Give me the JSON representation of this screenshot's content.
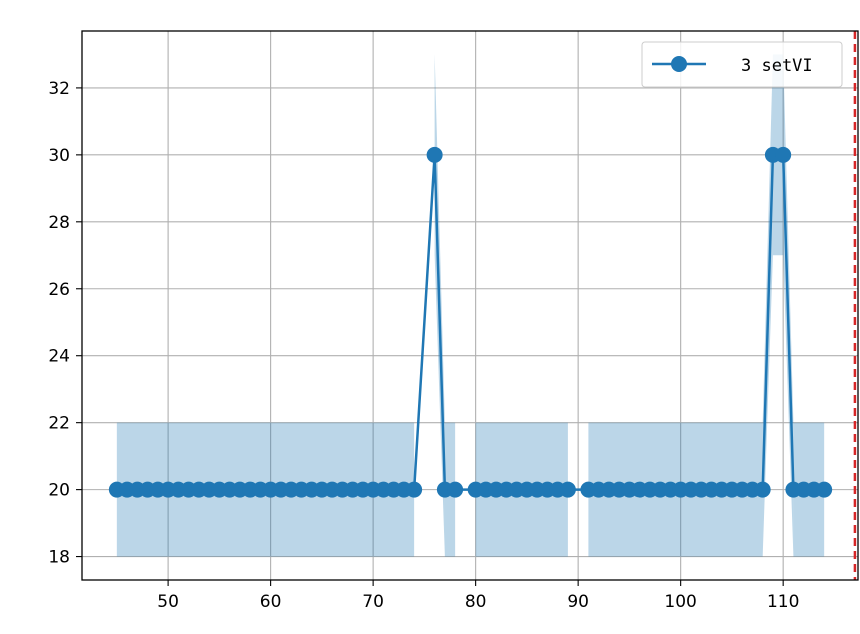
{
  "chart_data": {
    "type": "line",
    "title": "",
    "xlabel": "",
    "ylabel": "",
    "xlim": [
      41.6,
      117.3
    ],
    "ylim": [
      17.3,
      33.7
    ],
    "xticks": [
      50,
      60,
      70,
      80,
      90,
      100,
      110
    ],
    "yticks": [
      18,
      20,
      22,
      24,
      26,
      28,
      30,
      32
    ],
    "grid": true,
    "legend_position": "top-right",
    "vline": {
      "x": 117,
      "color": "#d62728",
      "style": "dashed"
    },
    "series": [
      {
        "name": "3 setVI",
        "color": "#1f77b4",
        "x": [
          45,
          46,
          47,
          48,
          49,
          50,
          51,
          52,
          53,
          54,
          55,
          56,
          57,
          58,
          59,
          60,
          61,
          62,
          63,
          64,
          65,
          66,
          67,
          68,
          69,
          70,
          71,
          72,
          73,
          74,
          76,
          77,
          78,
          80,
          81,
          82,
          83,
          84,
          85,
          86,
          87,
          88,
          89,
          91,
          92,
          93,
          94,
          95,
          96,
          97,
          98,
          99,
          100,
          101,
          102,
          103,
          104,
          105,
          106,
          107,
          108,
          109,
          110,
          111,
          112,
          113,
          114
        ],
        "y": [
          20,
          20,
          20,
          20,
          20,
          20,
          20,
          20,
          20,
          20,
          20,
          20,
          20,
          20,
          20,
          20,
          20,
          20,
          20,
          20,
          20,
          20,
          20,
          20,
          20,
          20,
          20,
          20,
          20,
          20,
          30,
          20,
          20,
          20,
          20,
          20,
          20,
          20,
          20,
          20,
          20,
          20,
          20,
          20,
          20,
          20,
          20,
          20,
          20,
          20,
          20,
          20,
          20,
          20,
          20,
          20,
          20,
          20,
          20,
          20,
          20,
          30,
          30,
          20,
          20,
          20,
          20
        ]
      }
    ],
    "bands": [
      {
        "x": [
          45,
          46,
          47,
          48,
          49,
          50,
          51,
          52,
          53,
          54,
          55,
          56,
          57,
          58,
          59,
          60,
          61,
          62,
          63,
          64,
          65,
          66,
          67,
          68,
          69,
          70,
          71,
          72,
          73,
          74
        ],
        "lower": 18,
        "upper": 22
      },
      {
        "x": [
          76,
          77
        ],
        "lower": [
          27,
          18
        ],
        "upper": [
          33,
          22
        ]
      },
      {
        "x": [
          77,
          78
        ],
        "lower": 18,
        "upper": 22
      },
      {
        "x": [
          80,
          81,
          82,
          83,
          84,
          85,
          86,
          87,
          88,
          89
        ],
        "lower": 18,
        "upper": 22
      },
      {
        "x": [
          91,
          92,
          93,
          94,
          95,
          96,
          97,
          98,
          99,
          100,
          101,
          102,
          103,
          104,
          105,
          106,
          107,
          108
        ],
        "lower": 18,
        "upper": 22
      },
      {
        "x": [
          108,
          109
        ],
        "lower": [
          18,
          27
        ],
        "upper": [
          22,
          33
        ]
      },
      {
        "x": [
          109,
          110
        ],
        "lower": 27,
        "upper": 33
      },
      {
        "x": [
          110,
          111
        ],
        "lower": [
          27,
          18
        ],
        "upper": [
          33,
          22
        ]
      },
      {
        "x": [
          111,
          112,
          113,
          114
        ],
        "lower": 18,
        "upper": 22
      }
    ]
  }
}
